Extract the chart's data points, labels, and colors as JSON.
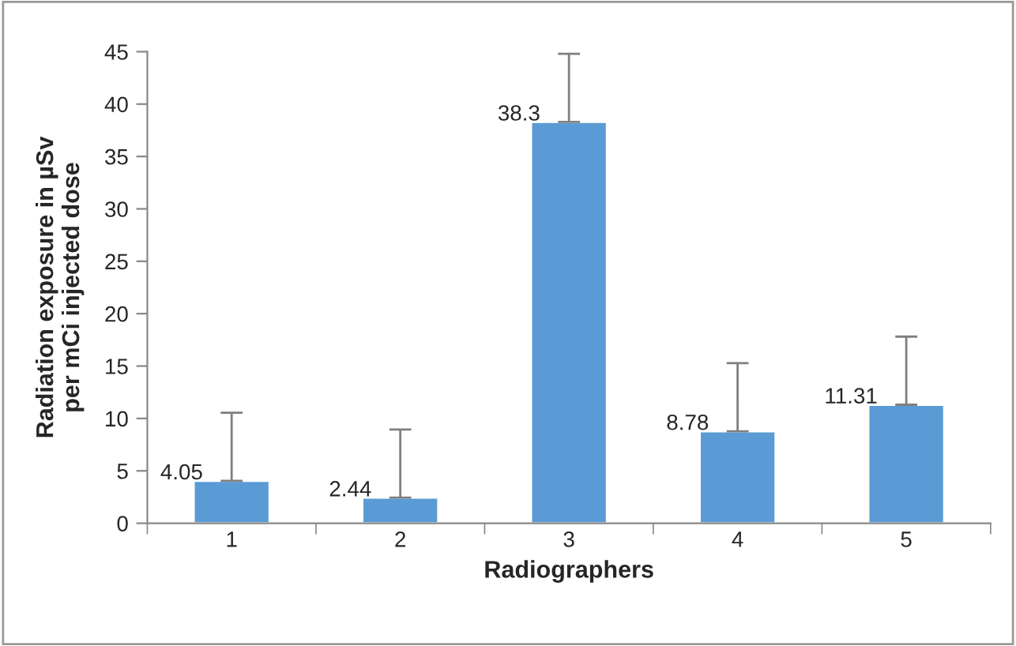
{
  "chart_data": {
    "type": "bar",
    "xlabel": "Radiographers",
    "ylabel": "Radiation exposure in µSv per mCi injected dose",
    "categories": [
      "1",
      "2",
      "3",
      "4",
      "5"
    ],
    "values": [
      4.05,
      2.44,
      38.3,
      8.78,
      11.31
    ],
    "errors": [
      [
        4.05,
        10.55
      ],
      [
        2.44,
        8.94
      ],
      [
        38.3,
        44.8
      ],
      [
        8.78,
        15.28
      ],
      [
        11.31,
        17.81
      ]
    ],
    "color": "#5b9bd5",
    "ylim": [
      0,
      45
    ],
    "yticks": [
      0,
      5,
      10,
      15,
      20,
      25,
      30,
      35,
      40,
      45
    ],
    "data_labels": true,
    "grid": false,
    "legend": false
  }
}
